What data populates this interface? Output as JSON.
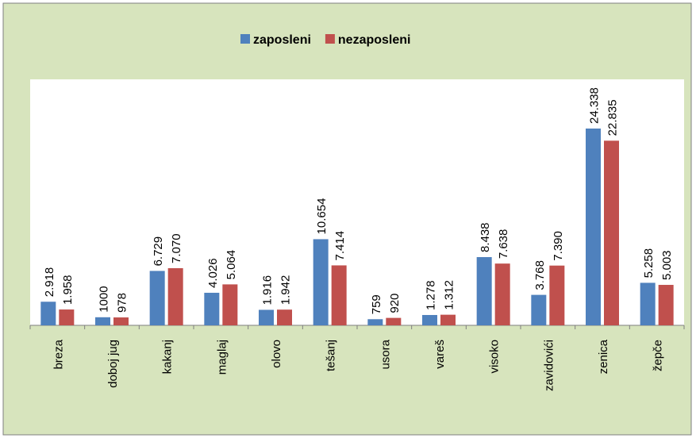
{
  "chart_data": {
    "type": "bar",
    "categories": [
      "breza",
      "doboj jug",
      "kakanj",
      "maglaj",
      "olovo",
      "tešanj",
      "usora",
      "vareš",
      "visoko",
      "zavidovići",
      "zenica",
      "žepče"
    ],
    "series": [
      {
        "name": "zaposleni",
        "color": "#4f81bd",
        "values": [
          2918,
          1000,
          6729,
          4026,
          1916,
          10654,
          759,
          1278,
          8438,
          3768,
          24338,
          5258
        ],
        "value_labels": [
          "2.918",
          "1000",
          "6.729",
          "4.026",
          "1.916",
          "10.654",
          "759",
          "1.278",
          "8.438",
          "3.768",
          "24.338",
          "5.258"
        ]
      },
      {
        "name": "nezaposleni",
        "color": "#c0504d",
        "values": [
          1958,
          978,
          7070,
          5064,
          1942,
          7414,
          920,
          1312,
          7638,
          7390,
          22835,
          5003
        ],
        "value_labels": [
          "1.958",
          "978",
          "7.070",
          "5.064",
          "1.942",
          "7.414",
          "920",
          "1.312",
          "7.638",
          "7.390",
          "22.835",
          "5.003"
        ]
      }
    ],
    "legend": "top"
  }
}
